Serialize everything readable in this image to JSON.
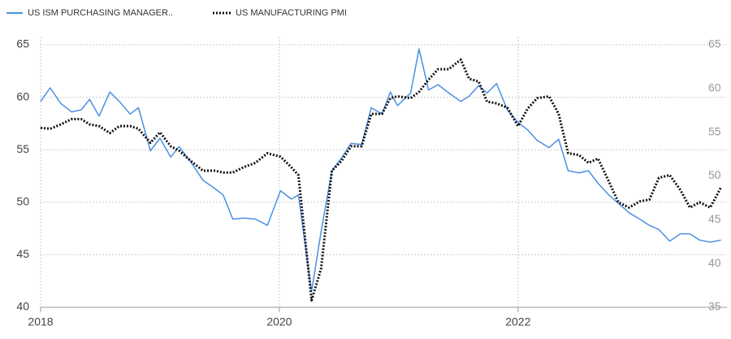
{
  "chart_data": {
    "type": "line",
    "x": [
      2018.0,
      2018.08,
      2018.17,
      2018.26,
      2018.34,
      2018.41,
      2018.49,
      2018.58,
      2018.66,
      2018.75,
      2018.82,
      2018.92,
      2019.0,
      2019.09,
      2019.16,
      2019.26,
      2019.36,
      2019.46,
      2019.53,
      2019.61,
      2019.7,
      2019.8,
      2019.9,
      2020.01,
      2020.1,
      2020.16,
      2020.27,
      2020.35,
      2020.44,
      2020.52,
      2020.6,
      2020.69,
      2020.77,
      2020.86,
      2020.93,
      2020.99,
      2021.1,
      2021.17,
      2021.25,
      2021.33,
      2021.42,
      2021.52,
      2021.59,
      2021.67,
      2021.74,
      2021.82,
      2021.91,
      2022.0,
      2022.08,
      2022.16,
      2022.26,
      2022.34,
      2022.42,
      2022.51,
      2022.59,
      2022.67,
      2022.76,
      2022.84,
      2022.93,
      2023.02,
      2023.1,
      2023.18,
      2023.27,
      2023.36,
      2023.44,
      2023.52,
      2023.61,
      2023.7
    ],
    "series": [
      {
        "name": "US ISM PURCHASING MANAGER..",
        "color": "#4a90e2",
        "axis": "y",
        "values": [
          59.6,
          60.9,
          59.4,
          58.6,
          58.8,
          59.8,
          58.2,
          60.5,
          59.6,
          58.4,
          59.0,
          54.9,
          56.1,
          54.3,
          55.3,
          53.8,
          52.1,
          51.3,
          50.7,
          48.4,
          48.5,
          48.4,
          47.8,
          51.1,
          50.3,
          50.7,
          41.5,
          47.2,
          53.0,
          54.2,
          55.6,
          55.5,
          59.0,
          58.4,
          60.5,
          59.2,
          60.4,
          64.6,
          60.7,
          61.2,
          60.4,
          59.6,
          60.1,
          61.1,
          60.4,
          61.3,
          58.8,
          57.6,
          56.9,
          55.9,
          55.2,
          56.0,
          53.0,
          52.8,
          53.0,
          51.8,
          50.7,
          49.9,
          49.0,
          48.4,
          47.8,
          47.4,
          46.3,
          47.0,
          47.0,
          46.4,
          46.2,
          46.4
        ]
      },
      {
        "name": "US MANUFACTURING PMI",
        "color": "#111111",
        "axis": "y2",
        "values": [
          55.5,
          55.4,
          55.9,
          56.5,
          56.5,
          55.9,
          55.7,
          54.9,
          55.7,
          55.7,
          55.4,
          53.8,
          55.0,
          53.4,
          52.9,
          51.7,
          50.6,
          50.6,
          50.4,
          50.4,
          51.0,
          51.5,
          52.6,
          52.2,
          51.0,
          50.1,
          35.8,
          39.4,
          50.6,
          51.7,
          53.4,
          53.4,
          57.1,
          57.1,
          58.9,
          59.1,
          58.9,
          59.6,
          61.0,
          62.2,
          62.2,
          63.3,
          61.1,
          60.8,
          58.5,
          58.3,
          57.8,
          55.7,
          57.7,
          58.9,
          59.1,
          57.1,
          52.6,
          52.4,
          51.5,
          52.0,
          49.4,
          47.0,
          46.4,
          47.1,
          47.3,
          49.8,
          50.1,
          48.4,
          46.4,
          47.0,
          46.4,
          48.7
        ]
      }
    ],
    "xlim": [
      2018,
      2023.75
    ],
    "xticks": [
      2018,
      2020,
      2022
    ],
    "ylim": [
      40,
      65
    ],
    "yticks": [
      40,
      45,
      50,
      55,
      60,
      65
    ],
    "y2lim": [
      35,
      65
    ],
    "y2ticks": [
      35,
      40,
      45,
      50,
      55,
      60,
      65
    ],
    "grid": true
  }
}
